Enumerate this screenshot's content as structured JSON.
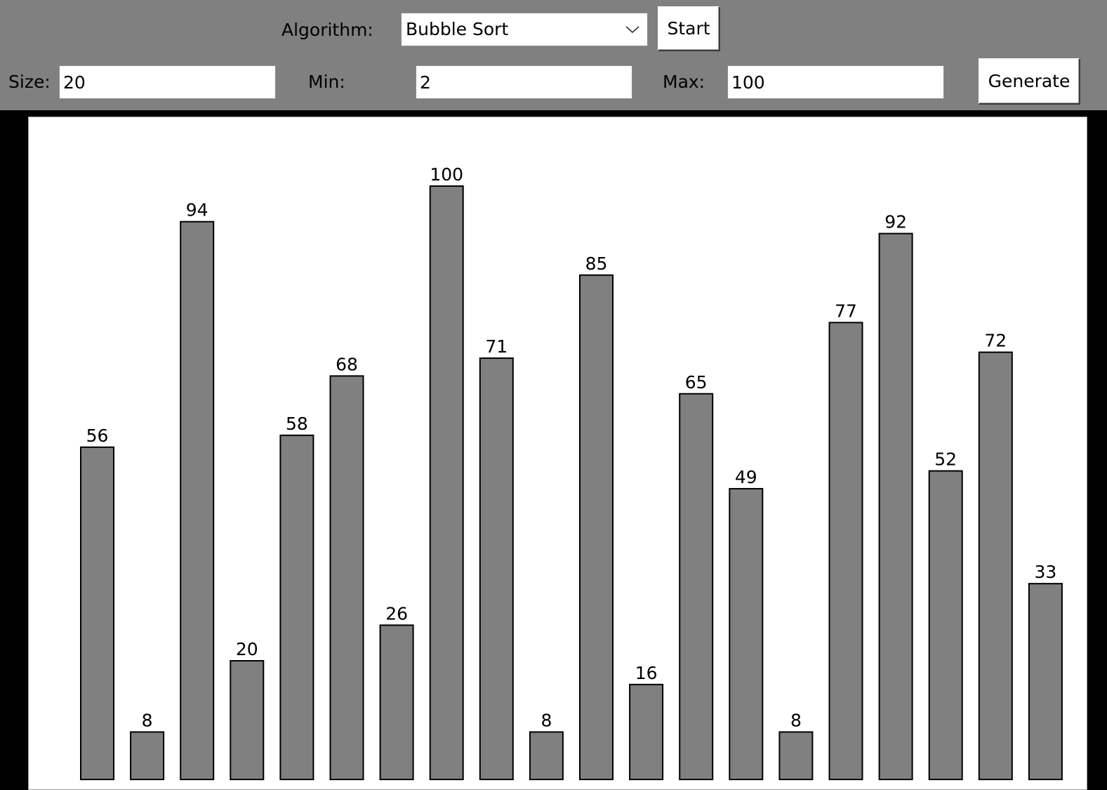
{
  "toolbar": {
    "algorithm_label": "Algorithm:",
    "algorithm_value": "Bubble Sort",
    "start_label": "Start",
    "size_label": "Size:",
    "size_value": "20",
    "min_label": "Min:",
    "min_value": "2",
    "max_label": "Max:",
    "max_value": "100",
    "generate_label": "Generate"
  },
  "colors": {
    "background": "#000000",
    "toolbar": "#808080",
    "canvas": "#ffffff",
    "bar_fill": "#808080",
    "bar_stroke": "#000000"
  },
  "chart_data": {
    "type": "bar",
    "values": [
      56,
      8,
      94,
      20,
      58,
      68,
      26,
      100,
      71,
      8,
      85,
      16,
      65,
      49,
      8,
      77,
      92,
      52,
      72,
      33
    ],
    "ylim": [
      0,
      100
    ]
  }
}
